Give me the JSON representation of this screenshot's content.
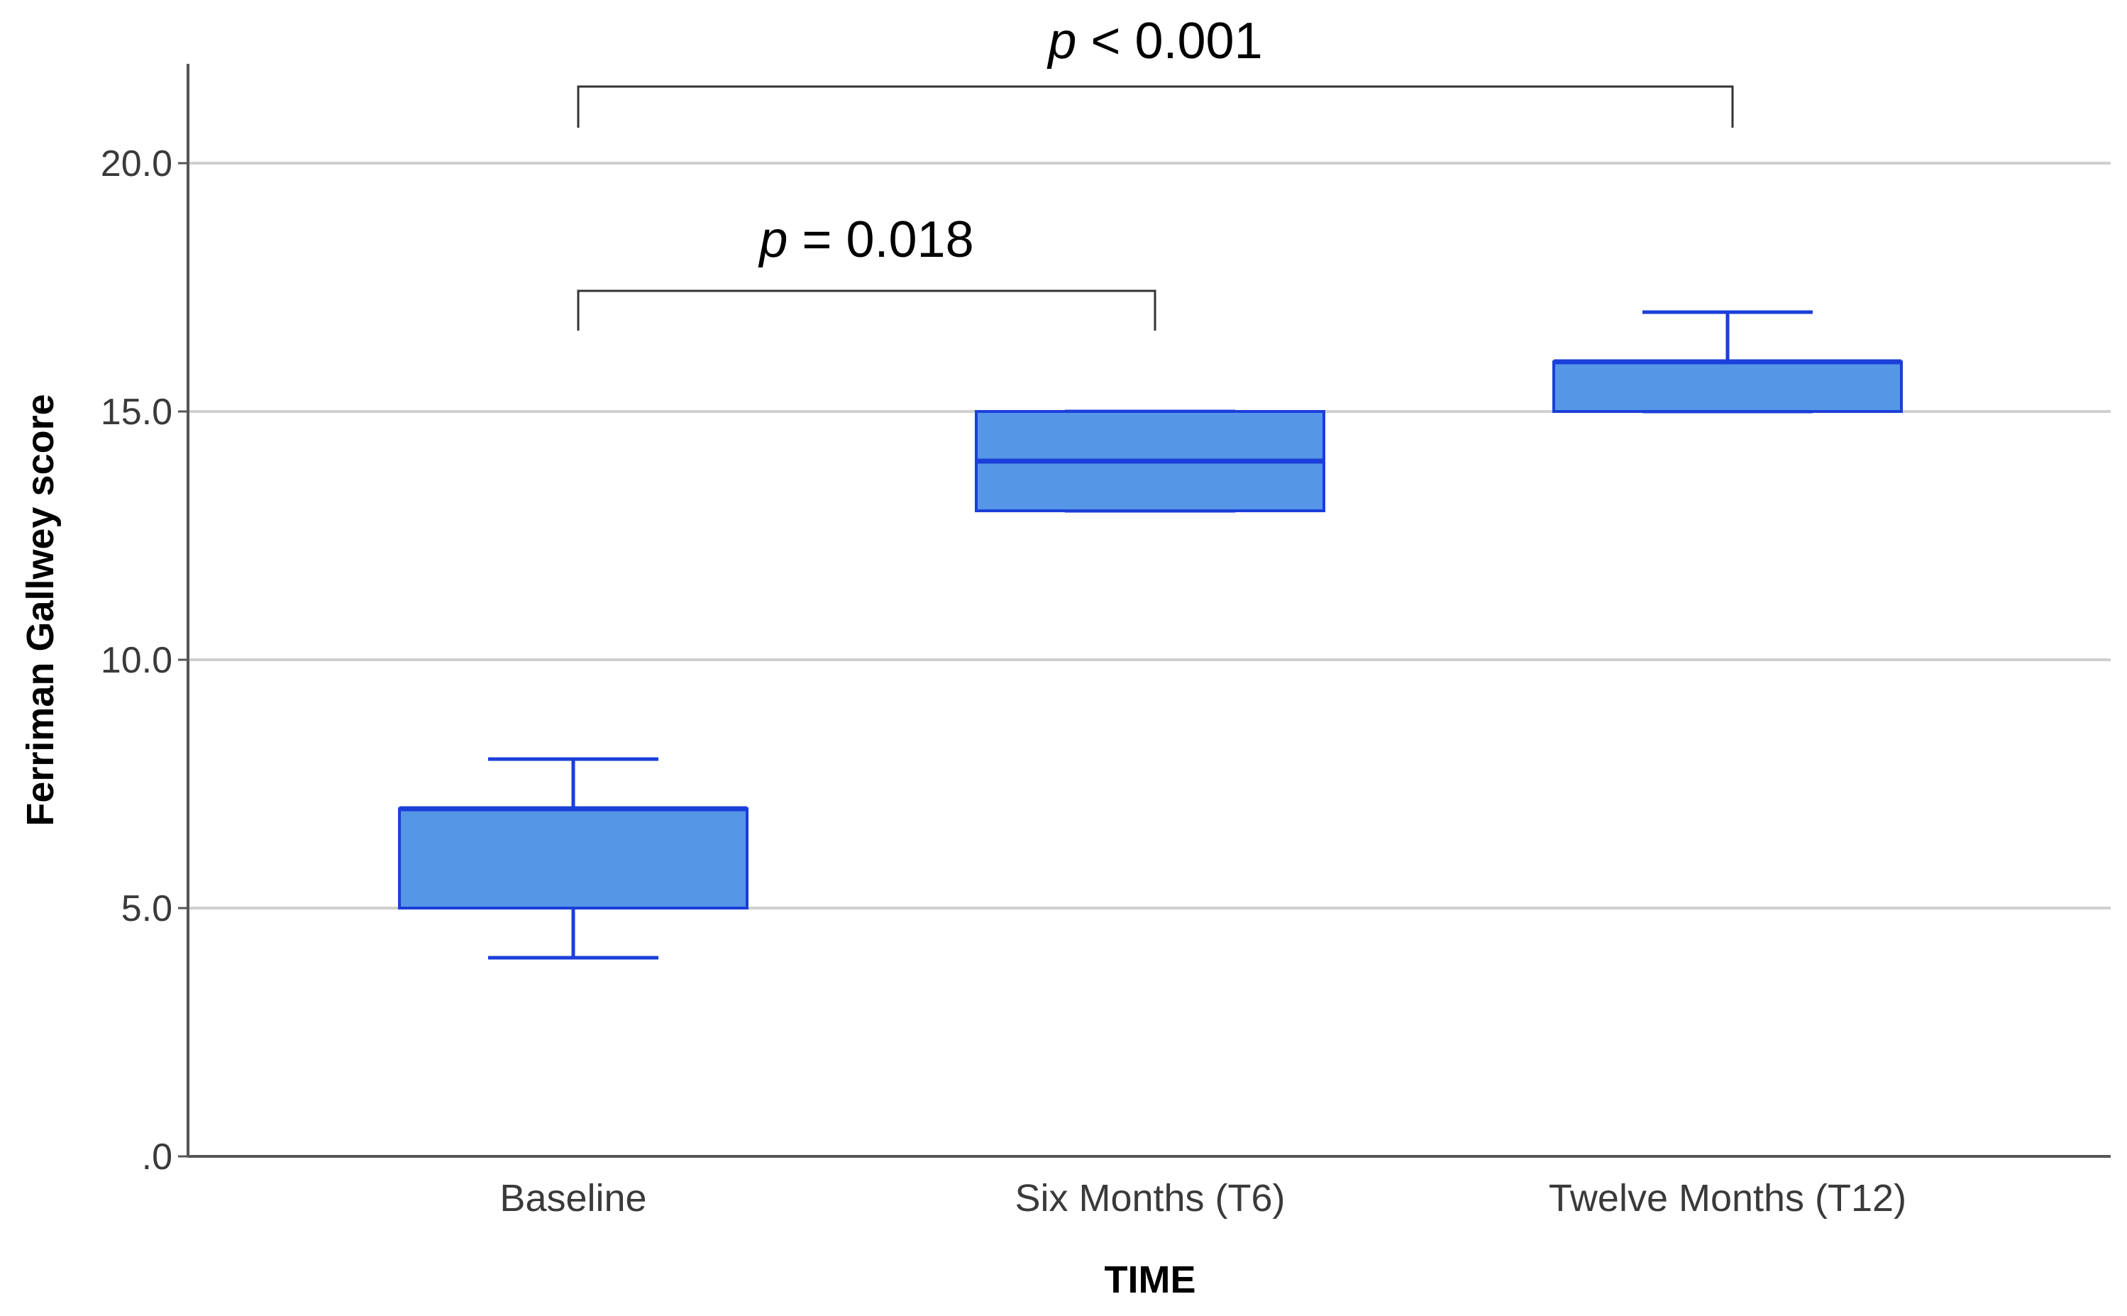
{
  "chart_data": {
    "type": "box",
    "title": "",
    "xlabel": "TIME",
    "ylabel": "Ferriman Gallwey score",
    "ylim": [
      0,
      22
    ],
    "yticks": [
      {
        "value": 0,
        "label": ".0"
      },
      {
        "value": 5,
        "label": "5.0"
      },
      {
        "value": 10,
        "label": "10.0"
      },
      {
        "value": 15,
        "label": "15.0"
      },
      {
        "value": 20,
        "label": "20.0"
      }
    ],
    "grid": true,
    "categories": [
      "Baseline",
      "Six Months (T6)",
      "Twelve Months (T12)"
    ],
    "boxes": [
      {
        "category": "Baseline",
        "min": 4,
        "q1": 5,
        "median": 7,
        "q3": 7,
        "max": 8
      },
      {
        "category": "Six Months (T6)",
        "min": 13,
        "q1": 13,
        "median": 14,
        "q3": 15,
        "max": 15
      },
      {
        "category": "Twelve Months (T12)",
        "min": 15,
        "q1": 15,
        "median": 16,
        "q3": 16,
        "max": 17
      }
    ],
    "annotations": [
      {
        "from": "Baseline",
        "to": "Twelve Months (T12)",
        "p_symbol": "p",
        "p_text": " < 0.001"
      },
      {
        "from": "Baseline",
        "to": "Six Months (T6)",
        "p_symbol": "p",
        "p_text": " = 0.018"
      }
    ],
    "colors": {
      "box_fill": "#5596e6",
      "box_stroke": "#1b3fd9",
      "grid": "#cfcfcf",
      "axis": "#555555",
      "bracket": "#333333"
    }
  }
}
